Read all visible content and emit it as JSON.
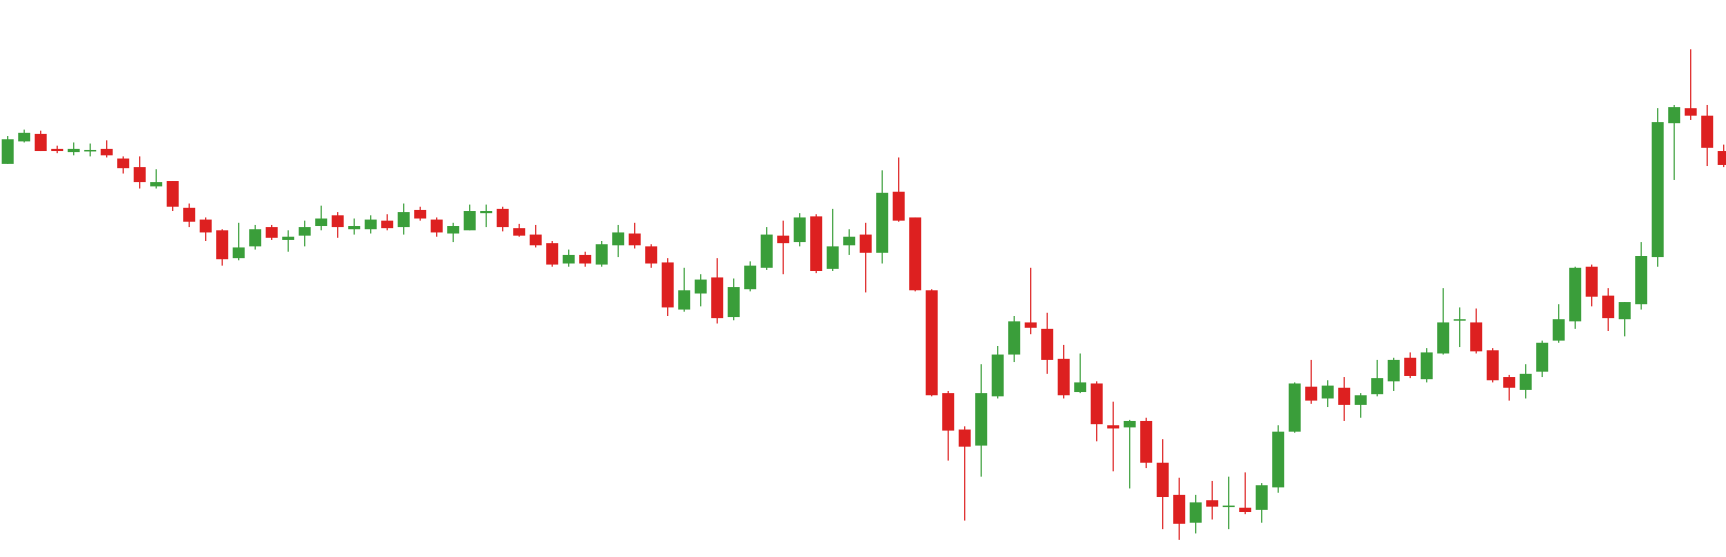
{
  "chart_data": {
    "type": "candlestick",
    "up_color": "#3a9e3a",
    "down_color": "#dd2020",
    "ylim": [
      0,
      520
    ],
    "open": [
      367,
      388,
      395,
      381,
      378,
      379,
      381,
      372,
      364,
      346,
      351,
      326,
      315,
      305,
      279,
      290,
      308,
      296,
      300,
      309,
      319,
      306,
      306,
      314,
      308,
      324,
      315,
      302,
      305,
      321,
      325,
      307,
      301,
      293,
      274,
      282,
      273,
      291,
      302,
      290,
      275,
      231,
      246,
      261,
      224,
      250,
      270,
      300,
      294,
      318,
      269,
      291,
      301,
      284,
      341,
      317,
      249,
      153,
      119,
      104,
      150,
      189,
      219,
      213,
      185,
      154,
      162,
      123,
      121,
      127,
      88,
      58,
      32,
      53,
      47,
      46,
      44,
      65,
      117,
      159,
      148,
      158,
      142,
      152,
      164,
      186,
      166,
      190,
      221,
      219,
      193,
      168,
      156,
      173,
      202,
      220,
      271,
      244,
      222,
      236,
      280,
      405,
      419,
      412,
      379
    ],
    "high": [
      393,
      399,
      398,
      384,
      387,
      386,
      389,
      374,
      374,
      362,
      351,
      330,
      317,
      306,
      312,
      310,
      310,
      305,
      314,
      328,
      322,
      316,
      319,
      320,
      330,
      327,
      317,
      312,
      329,
      329,
      327,
      311,
      310,
      295,
      287,
      285,
      295,
      310,
      312,
      292,
      279,
      270,
      264,
      279,
      260,
      276,
      308,
      314,
      321,
      320,
      325,
      306,
      312,
      361,
      373,
      317,
      250,
      155,
      122,
      180,
      197,
      225,
      270,
      228,
      198,
      190,
      164,
      145,
      128,
      130,
      110,
      74,
      58,
      71,
      75,
      79,
      69,
      123,
      163,
      184,
      165,
      168,
      153,
      184,
      186,
      191,
      195,
      251,
      233,
      232,
      195,
      170,
      180,
      202,
      236,
      271,
      273,
      251,
      238,
      294,
      419,
      422,
      474,
      422,
      385
    ],
    "low": [
      367,
      387,
      379,
      377,
      375,
      374,
      373,
      358,
      344,
      344,
      323,
      308,
      295,
      272,
      277,
      287,
      296,
      285,
      290,
      305,
      298,
      301,
      302,
      305,
      301,
      314,
      299,
      294,
      305,
      308,
      304,
      299,
      289,
      271,
      271,
      271,
      271,
      280,
      288,
      270,
      225,
      229,
      234,
      218,
      221,
      248,
      268,
      264,
      290,
      265,
      267,
      282,
      247,
      274,
      313,
      248,
      150,
      90,
      34,
      75,
      148,
      182,
      208,
      171,
      148,
      153,
      108,
      80,
      64,
      83,
      26,
      16,
      22,
      35,
      26,
      40,
      32,
      60,
      116,
      143,
      140,
      127,
      130,
      150,
      155,
      167,
      163,
      189,
      196,
      190,
      163,
      146,
      148,
      168,
      200,
      213,
      234,
      211,
      206,
      231,
      271,
      352,
      408,
      365,
      364
    ],
    "close": [
      390,
      396,
      379,
      379,
      381,
      380,
      375,
      363,
      350,
      350,
      327,
      313,
      303,
      278,
      289,
      306,
      298,
      299,
      308,
      316,
      308,
      309,
      315,
      307,
      322,
      316,
      303,
      309,
      323,
      323,
      308,
      300,
      291,
      273,
      282,
      274,
      292,
      303,
      291,
      274,
      233,
      249,
      259,
      223,
      252,
      272,
      301,
      293,
      317,
      267,
      290,
      299,
      284,
      340,
      314,
      249,
      151,
      118,
      103,
      153,
      189,
      220,
      214,
      184,
      151,
      163,
      124,
      120,
      127,
      88,
      56,
      31,
      51,
      47,
      48,
      42,
      67,
      117,
      162,
      146,
      160,
      142,
      151,
      167,
      184,
      169,
      191,
      219,
      222,
      192,
      165,
      158,
      171,
      200,
      222,
      270,
      243,
      223,
      238,
      281,
      406,
      420,
      412,
      382,
      366
    ]
  }
}
